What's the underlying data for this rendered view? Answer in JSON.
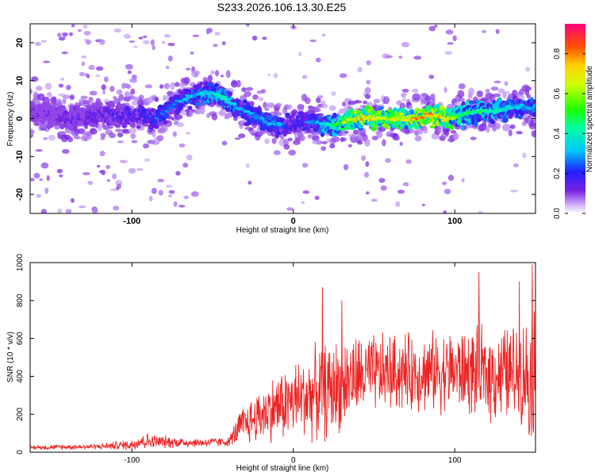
{
  "title": "S233.2026.106.13.30.E25",
  "chart_data": [
    {
      "type": "heatmap",
      "name": "spectrogram",
      "xlabel": "Height of straight line (km)",
      "ylabel": "Frequency (Hz)",
      "xlim": [
        -163,
        150
      ],
      "ylim": [
        -25,
        25
      ],
      "xticks": [
        -100,
        0,
        100
      ],
      "yticks": [
        -20,
        -10,
        0,
        10,
        20
      ],
      "ridge": {
        "description": "frequency of the main energy band vs height",
        "x": [
          -163,
          -140,
          -120,
          -100,
          -85,
          -70,
          -55,
          -45,
          -35,
          -25,
          -15,
          -5,
          5,
          15,
          25,
          35,
          45,
          55,
          65,
          75,
          85,
          95,
          105,
          115,
          125,
          135,
          148
        ],
        "freq": [
          2,
          0,
          1,
          1,
          0,
          5,
          7,
          6,
          3,
          1,
          -1,
          -2,
          -1,
          -1,
          -2,
          0,
          0,
          0,
          0,
          0,
          1,
          0,
          1,
          2,
          2,
          3,
          3
        ],
        "peak_amplitude": [
          0.15,
          0.18,
          0.2,
          0.25,
          0.3,
          0.32,
          0.4,
          0.45,
          0.38,
          0.32,
          0.35,
          0.3,
          0.28,
          0.35,
          0.5,
          0.75,
          0.85,
          0.75,
          0.8,
          0.85,
          0.9,
          0.8,
          0.55,
          0.5,
          0.45,
          0.4,
          0.35
        ]
      },
      "colorbar": {
        "label": "Normalized spectral amplitude",
        "range": [
          0,
          0.95
        ],
        "ticks": [
          0.0,
          0.2,
          0.4,
          0.6,
          0.8
        ],
        "tick_labels": [
          "0.0",
          "0.2",
          "0.4",
          "0.6",
          "0.8"
        ]
      }
    },
    {
      "type": "line",
      "name": "snr",
      "xlabel": "Height of straight line (km)",
      "ylabel": "SNR (10 * v/v)",
      "xlim": [
        -163,
        150
      ],
      "ylim": [
        0,
        1000
      ],
      "xticks": [
        -100,
        0,
        100
      ],
      "yticks": [
        0,
        200,
        400,
        600,
        800,
        1000
      ],
      "color": "#ee2222",
      "envelope": {
        "description": "approximate mean SNR and fluctuation amplitude vs height",
        "x": [
          -163,
          -120,
          -100,
          -95,
          -85,
          -60,
          -40,
          -33,
          -20,
          -10,
          0,
          10,
          20,
          30,
          40,
          60,
          80,
          100,
          120,
          140,
          150
        ],
        "mean": [
          25,
          30,
          40,
          60,
          55,
          50,
          55,
          130,
          200,
          240,
          270,
          300,
          320,
          360,
          400,
          420,
          420,
          430,
          410,
          420,
          400
        ],
        "amp": [
          10,
          12,
          25,
          40,
          30,
          20,
          20,
          80,
          120,
          150,
          170,
          190,
          210,
          200,
          180,
          170,
          170,
          180,
          200,
          220,
          300
        ]
      },
      "peaks": [
        {
          "x": 18,
          "y": 870
        },
        {
          "x": 115,
          "y": 950
        },
        {
          "x": 148,
          "y": 990
        },
        {
          "x": 140,
          "y": 900
        },
        {
          "x": 30,
          "y": 800
        }
      ]
    }
  ]
}
